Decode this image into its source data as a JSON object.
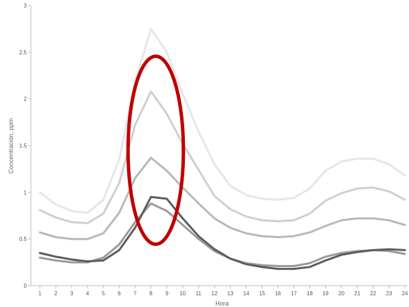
{
  "chart_data": {
    "type": "line",
    "title": "",
    "xlabel": "Hora",
    "ylabel": "Concentración, ppm",
    "x": [
      1,
      2,
      3,
      4,
      5,
      6,
      7,
      8,
      9,
      10,
      11,
      12,
      13,
      14,
      15,
      16,
      17,
      18,
      19,
      20,
      21,
      22,
      23,
      24
    ],
    "ylim": [
      0,
      3
    ],
    "yticks": [
      0,
      0.5,
      1,
      1.5,
      2,
      2.5,
      3
    ],
    "ytick_labels": [
      "0",
      "0.5",
      "1",
      "1.5",
      "2",
      "2.5",
      "3"
    ],
    "grid": false,
    "legend": "none",
    "series": [
      {
        "color": "#e6e6e6",
        "values": [
          1.0,
          0.87,
          0.8,
          0.78,
          0.92,
          1.35,
          2.18,
          2.75,
          2.5,
          2.05,
          1.65,
          1.3,
          1.07,
          0.97,
          0.93,
          0.92,
          0.94,
          1.04,
          1.23,
          1.33,
          1.36,
          1.36,
          1.3,
          1.18
        ]
      },
      {
        "color": "#cfcfcf",
        "values": [
          0.81,
          0.73,
          0.68,
          0.67,
          0.77,
          1.1,
          1.72,
          2.08,
          1.84,
          1.52,
          1.24,
          0.96,
          0.82,
          0.74,
          0.7,
          0.69,
          0.7,
          0.77,
          0.91,
          0.99,
          1.04,
          1.05,
          1.01,
          0.92
        ]
      },
      {
        "color": "#b8b8b8",
        "values": [
          0.57,
          0.52,
          0.5,
          0.5,
          0.56,
          0.78,
          1.15,
          1.37,
          1.23,
          1.05,
          0.88,
          0.72,
          0.62,
          0.56,
          0.53,
          0.52,
          0.53,
          0.57,
          0.64,
          0.7,
          0.72,
          0.72,
          0.7,
          0.65
        ]
      },
      {
        "color": "#9a9a9a",
        "values": [
          0.3,
          0.27,
          0.25,
          0.25,
          0.3,
          0.44,
          0.68,
          0.88,
          0.8,
          0.65,
          0.5,
          0.37,
          0.29,
          0.24,
          0.22,
          0.21,
          0.21,
          0.24,
          0.31,
          0.35,
          0.37,
          0.38,
          0.37,
          0.34
        ]
      },
      {
        "color": "#5d5d5d",
        "values": [
          0.35,
          0.31,
          0.28,
          0.26,
          0.27,
          0.38,
          0.62,
          0.95,
          0.93,
          0.72,
          0.53,
          0.39,
          0.29,
          0.23,
          0.2,
          0.18,
          0.18,
          0.2,
          0.27,
          0.33,
          0.36,
          0.38,
          0.39,
          0.38
        ]
      }
    ],
    "annotation": {
      "shape": "ellipse",
      "color": "#bf0000",
      "x_center": 8.3,
      "y_center": 1.45,
      "x_span": 2.45,
      "y_span": 1.6
    }
  }
}
